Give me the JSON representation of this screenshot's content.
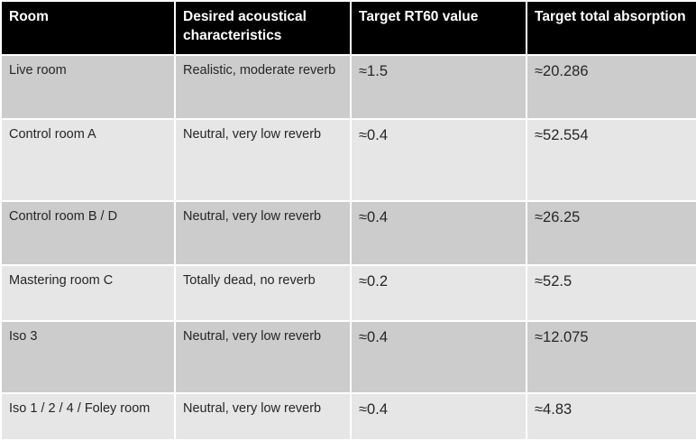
{
  "table": {
    "headers": [
      "Room",
      "Desired acoustical characteristics",
      "Target RT60 value",
      "Target total absorption"
    ],
    "rows": [
      [
        "Live room",
        "Realistic, moderate reverb",
        "≈1.5",
        "≈20.286"
      ],
      [
        "Control room A",
        "Neutral, very low reverb",
        "≈0.4",
        "≈52.554"
      ],
      [
        "Control room B / D",
        "Neutral, very low reverb",
        "≈0.4",
        "≈26.25"
      ],
      [
        "Mastering room C",
        "Totally dead, no reverb",
        "≈0.2",
        "≈52.5"
      ],
      [
        "Iso 3",
        "Neutral, very low reverb",
        "≈0.4",
        "≈12.075"
      ],
      [
        "Iso 1 / 2 / 4 / Foley room",
        "Neutral, very low reverb",
        "≈0.4",
        "≈4.83"
      ]
    ]
  },
  "colors": {
    "header_bg": "#000000",
    "header_text": "#ffffff",
    "row_dark": "#cccccc",
    "row_light": "#e6e6e6",
    "cell_text": "#262626"
  }
}
